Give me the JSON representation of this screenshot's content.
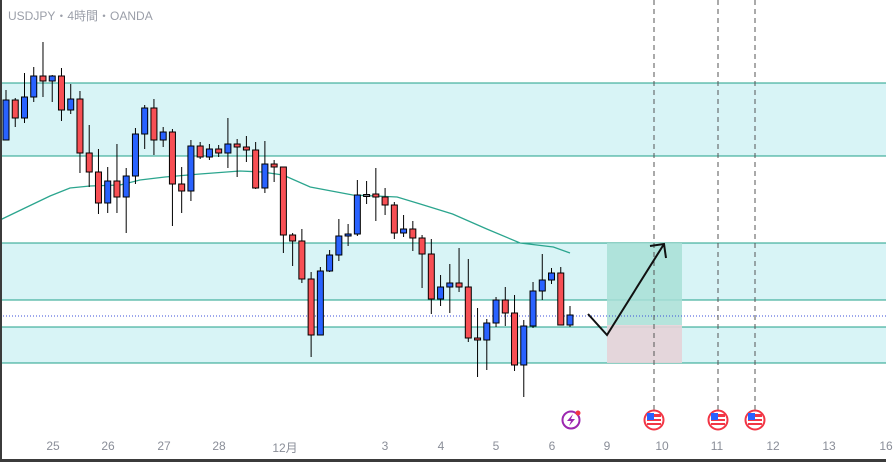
{
  "header": {
    "title": "USDJPY・4時間・OANDA"
  },
  "colors": {
    "up": "#2962ff",
    "down": "#f74f54",
    "doji": "#787b86",
    "zone_fill": "#d8f4f6",
    "zone_line": "#1fa08a",
    "ma": "#2ba58e",
    "target": "#a8dfd6",
    "stop": "#e6d3d8",
    "dotted": "#3b4fd8"
  },
  "chart_data": {
    "type": "candlestick",
    "title": "USDJPY・4時間・OANDA",
    "x_tick_labels": [
      "25",
      "26",
      "27",
      "28",
      "12月",
      "3",
      "4",
      "5",
      "6",
      "9",
      "10",
      "11",
      "12",
      "13",
      "16"
    ],
    "candles_ohlc": [
      [
        157.2,
        158.2,
        157.2,
        158.0
      ],
      [
        158.0,
        158.04,
        157.46,
        157.64
      ],
      [
        157.64,
        158.54,
        157.54,
        158.06
      ],
      [
        158.06,
        158.66,
        157.96,
        158.48
      ],
      [
        158.48,
        159.16,
        158.06,
        158.38
      ],
      [
        158.38,
        158.5,
        157.96,
        158.48
      ],
      [
        158.48,
        158.64,
        157.58,
        157.8
      ],
      [
        157.8,
        158.32,
        157.72,
        158.02
      ],
      [
        158.02,
        158.18,
        156.54,
        156.94
      ],
      [
        156.94,
        157.5,
        156.26,
        156.56
      ],
      [
        156.56,
        157.02,
        155.72,
        155.94
      ],
      [
        155.94,
        156.66,
        155.74,
        156.38
      ],
      [
        156.38,
        157.12,
        155.74,
        156.06
      ],
      [
        156.06,
        156.64,
        155.34,
        156.48
      ],
      [
        156.48,
        157.44,
        156.32,
        157.32
      ],
      [
        157.32,
        157.9,
        157.02,
        157.84
      ],
      [
        157.84,
        158.02,
        156.9,
        157.2
      ],
      [
        157.2,
        157.46,
        157.06,
        157.36
      ],
      [
        157.36,
        157.42,
        155.48,
        156.32
      ],
      [
        156.32,
        156.66,
        155.74,
        156.18
      ],
      [
        156.18,
        157.2,
        155.98,
        157.08
      ],
      [
        157.08,
        157.16,
        156.82,
        156.86
      ],
      [
        156.86,
        157.12,
        156.8,
        157.02
      ],
      [
        157.02,
        157.1,
        156.86,
        156.94
      ],
      [
        156.94,
        157.64,
        156.64,
        157.12
      ],
      [
        157.12,
        157.22,
        156.46,
        157.06
      ],
      [
        157.06,
        157.28,
        156.76,
        157.0
      ],
      [
        157.0,
        157.16,
        156.22,
        156.24
      ],
      [
        156.24,
        157.18,
        156.14,
        156.72
      ],
      [
        156.72,
        156.8,
        156.36,
        156.66
      ],
      [
        156.66,
        156.66,
        154.94,
        155.3
      ],
      [
        155.3,
        155.34,
        154.68,
        155.18
      ],
      [
        155.18,
        155.42,
        154.34,
        154.42
      ],
      [
        154.42,
        154.56,
        152.86,
        153.3
      ],
      [
        153.3,
        154.66,
        153.3,
        154.58
      ],
      [
        154.58,
        155.0,
        154.56,
        154.9
      ],
      [
        154.9,
        155.62,
        154.78,
        155.28
      ],
      [
        155.28,
        155.52,
        155.08,
        155.32
      ],
      [
        155.32,
        156.4,
        155.28,
        156.1
      ],
      [
        156.11,
        156.38,
        155.92,
        156.11
      ],
      [
        156.12,
        156.64,
        155.58,
        156.06
      ],
      [
        156.06,
        156.24,
        155.7,
        155.9
      ],
      [
        155.9,
        155.96,
        155.22,
        155.34
      ],
      [
        155.34,
        155.7,
        155.26,
        155.42
      ],
      [
        155.42,
        155.58,
        154.98,
        155.24
      ],
      [
        155.24,
        155.3,
        154.24,
        154.92
      ],
      [
        154.92,
        155.22,
        153.72,
        154.02
      ],
      [
        154.02,
        154.5,
        153.88,
        154.26
      ],
      [
        154.26,
        154.72,
        153.74,
        154.34
      ],
      [
        154.34,
        155.04,
        154.16,
        154.26
      ],
      [
        154.26,
        154.82,
        153.16,
        153.24
      ],
      [
        153.24,
        153.84,
        152.46,
        153.2
      ],
      [
        153.2,
        153.62,
        152.6,
        153.54
      ],
      [
        153.54,
        154.06,
        153.46,
        154.0
      ],
      [
        154.0,
        154.26,
        153.48,
        153.74
      ],
      [
        153.74,
        154.1,
        152.58,
        152.7
      ],
      [
        152.7,
        153.6,
        152.06,
        153.48
      ],
      [
        153.48,
        154.36,
        153.44,
        154.18
      ],
      [
        154.18,
        154.92,
        154.0,
        154.4
      ],
      [
        154.4,
        154.64,
        154.32,
        154.54
      ],
      [
        154.54,
        154.66,
        153.5,
        153.5
      ],
      [
        153.5,
        153.88,
        153.46,
        153.7
      ]
    ],
    "moving_average": [
      [
        -0.65,
        155.6
      ],
      [
        2.05,
        155.84
      ],
      [
        4.76,
        156.08
      ],
      [
        6.92,
        156.24
      ],
      [
        9.08,
        156.28
      ],
      [
        12.33,
        156.3
      ],
      [
        14.49,
        156.4
      ],
      [
        17.2,
        156.46
      ],
      [
        20.98,
        156.52
      ],
      [
        25.3,
        156.58
      ],
      [
        27.7,
        156.56
      ],
      [
        29.96,
        156.5
      ],
      [
        32.9,
        156.26
      ],
      [
        37.5,
        156.1
      ],
      [
        42.3,
        156.06
      ],
      [
        44.8,
        155.92
      ],
      [
        48.3,
        155.72
      ],
      [
        52.0,
        155.42
      ],
      [
        55.6,
        155.14
      ],
      [
        59.2,
        155.06
      ],
      [
        61.0,
        154.94
      ]
    ],
    "zones": [
      [
        156.88,
        158.34
      ],
      [
        154.0,
        155.14
      ],
      [
        152.74,
        153.46
      ]
    ],
    "current_price_line": 153.68,
    "position": {
      "entry": 153.5,
      "target": 155.14,
      "stop": 152.74
    },
    "projection_path": [
      153.72,
      153.3,
      155.12
    ],
    "events": [
      "lightning-event",
      "us-flag-event",
      "us-flag-event",
      "us-flag-event"
    ],
    "ylim": [
      150.76,
      160.0
    ]
  }
}
